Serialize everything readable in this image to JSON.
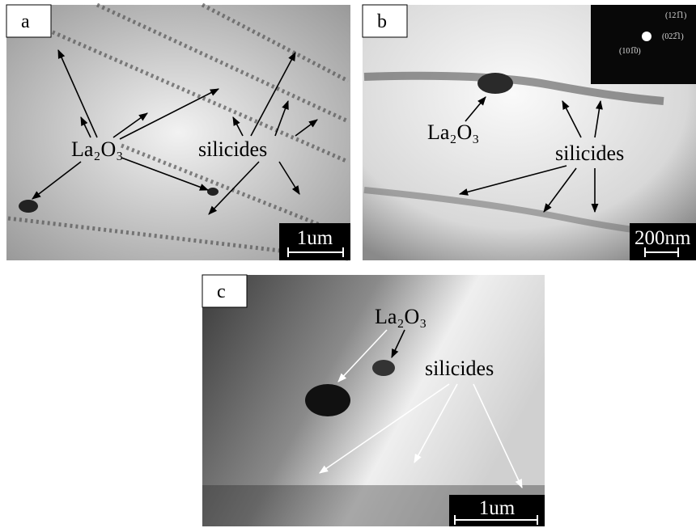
{
  "panels": [
    {
      "label": "a",
      "annotations": [
        "La₂O₃",
        "silicides"
      ],
      "scale_bar": "1um"
    },
    {
      "label": "b",
      "annotations": [
        "La₂O₃",
        "silicides"
      ],
      "scale_bar": "200nm",
      "inset_labels": [
        "(121̅1)",
        "(022̅1)",
        "(101̅0)"
      ]
    },
    {
      "label": "c",
      "annotations": [
        "La₂O₃",
        "silicides"
      ],
      "scale_bar": "1um"
    }
  ]
}
